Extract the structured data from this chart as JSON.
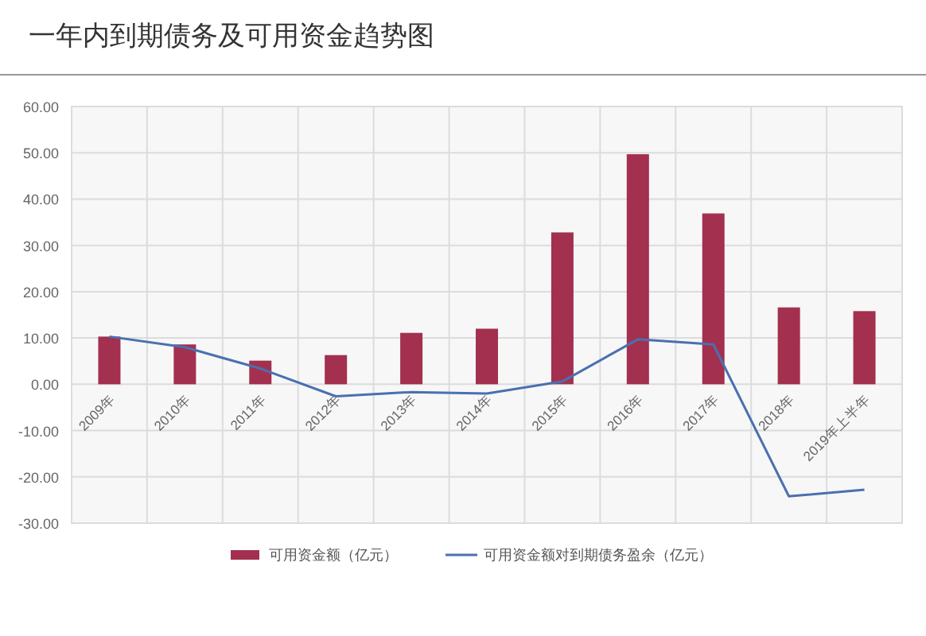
{
  "chart_data": {
    "type": "bar",
    "title": "一年内到期债务及可用资金趋势图",
    "categories": [
      "2009年",
      "2010年",
      "2011年",
      "2012年",
      "2013年",
      "2014年",
      "2015年",
      "2016年",
      "2017年",
      "2018年",
      "2019年上半年"
    ],
    "series": [
      {
        "name": "可用资金额（亿元）",
        "color": "#a3304f",
        "values": [
          10.3,
          8.6,
          5.1,
          6.3,
          11.1,
          12.0,
          32.8,
          49.7,
          36.9,
          16.6,
          15.8
        ]
      },
      {
        "name": "可用资金额对到期债务盈余（亿元）",
        "type": "line",
        "color": "#4a70b0",
        "values": [
          10.3,
          8.0,
          3.4,
          -2.6,
          -1.7,
          -2.0,
          0.6,
          9.7,
          8.6,
          -24.2,
          -22.8
        ]
      }
    ],
    "ylim": [
      -30,
      60
    ],
    "yticks": [
      {
        "value": -30,
        "label": "-30.00"
      },
      {
        "value": -20,
        "label": "-20.00"
      },
      {
        "value": -10,
        "label": "-10.00"
      },
      {
        "value": 0,
        "label": "0.00"
      },
      {
        "value": 10,
        "label": "10.00"
      },
      {
        "value": 20,
        "label": "20.00"
      },
      {
        "value": 30,
        "label": "30.00"
      },
      {
        "value": 40,
        "label": "40.00"
      },
      {
        "value": 50,
        "label": "50.00"
      },
      {
        "value": 60,
        "label": "60.00"
      }
    ],
    "grid": true,
    "legend": "bottom",
    "marker": "none"
  }
}
